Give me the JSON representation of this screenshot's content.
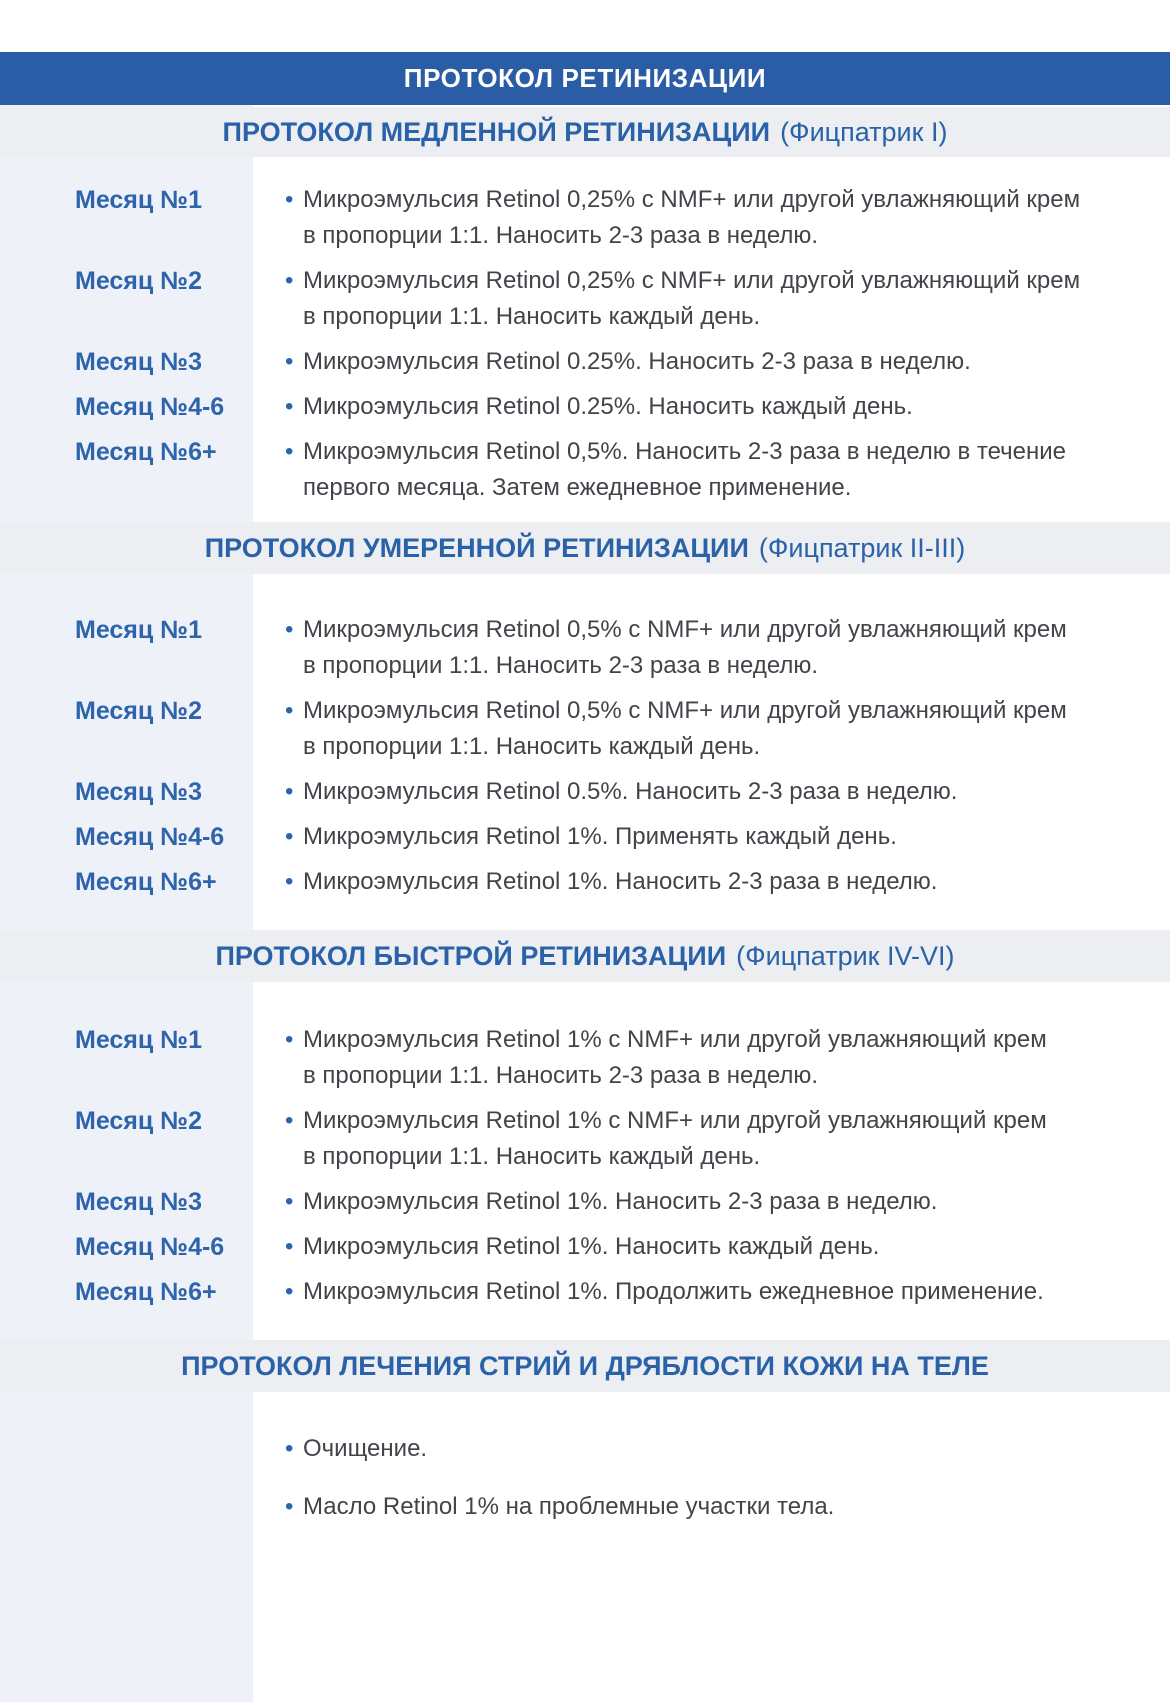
{
  "page": {
    "header": "ПРОТОКОЛ РЕТИНИЗАЦИИ"
  },
  "colors": {
    "accent_blue": "#2B5CA6",
    "section_title_blue": "#2A62A9",
    "label_blue": "#2D64AB",
    "body_text": "#414449",
    "left_column_bg": "#EFF1F8",
    "band_bg": "#EDEEF2"
  },
  "icons": {
    "bullet": "•"
  },
  "sections": [
    {
      "title": "ПРОТОКОЛ МЕДЛЕННОЙ РЕТИНИЗАЦИИ",
      "subtitle": "(Фицпатрик I)",
      "rows": [
        {
          "label": "Месяц №1",
          "text": "Микроэмульсия Retinol 0,25% с NMF+ или другой увлажняющий крем\nв пропорции 1:1. Наносить 2-3 раза в неделю."
        },
        {
          "label": "Месяц №2",
          "text": "Микроэмульсия Retinol 0,25% с NMF+ или другой увлажняющий крем\nв пропорции 1:1. Наносить каждый день."
        },
        {
          "label": "Месяц №3",
          "text": "Микроэмульсия Retinol 0.25%. Наносить 2-3 раза в неделю."
        },
        {
          "label": "Месяц №4-6",
          "text": "Микроэмульсия Retinol 0.25%. Наносить каждый день."
        },
        {
          "label": "Месяц №6+",
          "text": "Микроэмульсия Retinol 0,5%. Наносить 2-3 раза в неделю в течение\nпервого месяца. Затем ежедневное применение."
        }
      ]
    },
    {
      "title": "ПРОТОКОЛ УМЕРЕННОЙ РЕТИНИЗАЦИИ",
      "subtitle": "(Фицпатрик II-III)",
      "rows": [
        {
          "label": "Месяц №1",
          "text": "Микроэмульсия Retinol 0,5% с NMF+ или другой увлажняющий крем\nв пропорции 1:1. Наносить 2-3 раза в неделю."
        },
        {
          "label": "Месяц №2",
          "text": "Микроэмульсия Retinol 0,5% с NMF+ или другой увлажняющий крем\nв пропорции 1:1. Наносить каждый день."
        },
        {
          "label": "Месяц №3",
          "text": "Микроэмульсия Retinol 0.5%. Наносить 2-3 раза в неделю."
        },
        {
          "label": "Месяц №4-6",
          "text": "Микроэмульсия Retinol 1%. Применять каждый день."
        },
        {
          "label": "Месяц №6+",
          "text": "Микроэмульсия Retinol 1%. Наносить 2-3 раза в неделю."
        }
      ]
    },
    {
      "title": "ПРОТОКОЛ БЫСТРОЙ РЕТИНИЗАЦИИ",
      "subtitle": "(Фицпатрик IV-VI)",
      "rows": [
        {
          "label": "Месяц №1",
          "text": "Микроэмульсия Retinol 1% с NMF+ или другой увлажняющий крем\nв пропорции 1:1. Наносить 2-3 раза в неделю."
        },
        {
          "label": "Месяц №2",
          "text": "Микроэмульсия Retinol 1% с NMF+ или другой увлажняющий крем\nв пропорции 1:1. Наносить каждый день."
        },
        {
          "label": "Месяц №3",
          "text": "Микроэмульсия Retinol 1%. Наносить 2-3 раза в неделю."
        },
        {
          "label": "Месяц №4-6",
          "text": "Микроэмульсия Retinol 1%. Наносить каждый день."
        },
        {
          "label": "Месяц №6+",
          "text": "Микроэмульсия Retinol 1%. Продолжить ежедневное применение."
        }
      ]
    },
    {
      "title": "ПРОТОКОЛ ЛЕЧЕНИЯ СТРИЙ И ДРЯБЛОСТИ КОЖИ НА ТЕЛЕ",
      "subtitle": "",
      "rows": [
        {
          "label": "",
          "text": "Очищение."
        },
        {
          "label": "",
          "text": "Масло Retinol 1% на проблемные участки тела."
        }
      ]
    }
  ]
}
